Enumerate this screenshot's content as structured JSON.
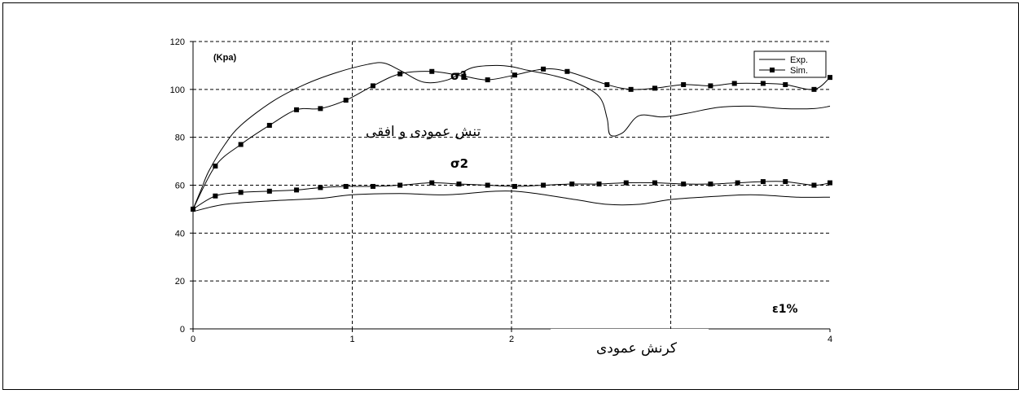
{
  "chart_data": {
    "type": "line",
    "x_range": [
      0,
      4
    ],
    "y_range": [
      0,
      120
    ],
    "x_ticks": [
      "0",
      "1",
      "2",
      "4"
    ],
    "y_ticks": [
      "0",
      "20",
      "40",
      "60",
      "80",
      "100",
      "120"
    ],
    "grid": "dashed",
    "legend_placement": "top-right",
    "unit_label": "(Kpa)",
    "sigma1_label": "σ1",
    "sigma2_label": "σ2",
    "xlabel_symbol": "ε1%",
    "ylabel_persian": "تنش عمودی و افقی",
    "xlabel_persian": "کرنش عمودی",
    "series": [
      {
        "name": "Exp.",
        "marker": "none",
        "color": "#000000",
        "x": [
          0,
          0.05,
          0.1,
          0.2,
          0.3,
          0.5,
          0.7,
          0.9,
          1.1,
          1.2,
          1.3,
          1.45,
          1.6,
          1.75,
          1.9,
          2.0,
          2.1,
          2.25,
          2.4,
          2.55,
          2.6,
          2.62,
          2.7,
          2.8,
          2.95,
          3.1,
          3.3,
          3.5,
          3.7,
          3.9,
          4.0
        ],
        "y": [
          50,
          58,
          66,
          77,
          85,
          95,
          102,
          107,
          110.5,
          111,
          108,
          103,
          104,
          109,
          110,
          109.5,
          108,
          106,
          103,
          97,
          88,
          81,
          82,
          89,
          88.5,
          90,
          92.5,
          93,
          92,
          92,
          93
        ]
      },
      {
        "name": "Exp.",
        "marker": "none",
        "color": "#000000",
        "x": [
          0,
          0.2,
          0.5,
          0.8,
          1.0,
          1.3,
          1.6,
          1.9,
          2.1,
          2.4,
          2.6,
          2.8,
          3.0,
          3.2,
          3.5,
          3.8,
          4.0
        ],
        "y": [
          49,
          52,
          53.5,
          54.5,
          56,
          56.5,
          56,
          57.5,
          57,
          54,
          52,
          52,
          54,
          55,
          56,
          55,
          55
        ]
      },
      {
        "name": "Sim.",
        "marker": "square",
        "color": "#000000",
        "x": [
          0,
          0.14,
          0.3,
          0.48,
          0.65,
          0.8,
          0.96,
          1.13,
          1.3,
          1.5,
          1.7,
          1.85,
          2.02,
          2.2,
          2.35,
          2.6,
          2.75,
          2.9,
          3.08,
          3.25,
          3.4,
          3.58,
          3.72,
          3.9,
          4.0
        ],
        "y": [
          50,
          68,
          77,
          85,
          91.5,
          92,
          95.5,
          101.5,
          106.5,
          107.5,
          105.5,
          104,
          106,
          108.5,
          107.5,
          102,
          100,
          100.5,
          102,
          101.5,
          102.5,
          102.5,
          102,
          100,
          105
        ]
      },
      {
        "name": "Sim.",
        "marker": "square",
        "color": "#000000",
        "x": [
          0,
          0.14,
          0.3,
          0.48,
          0.65,
          0.8,
          0.96,
          1.13,
          1.3,
          1.5,
          1.67,
          1.85,
          2.02,
          2.2,
          2.38,
          2.55,
          2.72,
          2.9,
          3.08,
          3.25,
          3.42,
          3.58,
          3.72,
          3.9,
          4.0
        ],
        "y": [
          50,
          55.5,
          57,
          57.5,
          58,
          59,
          59.5,
          59.5,
          60,
          61,
          60.5,
          60,
          59.5,
          60,
          60.5,
          60.5,
          61,
          61,
          60.5,
          60.5,
          61,
          61.5,
          61.5,
          60,
          61
        ]
      }
    ]
  }
}
